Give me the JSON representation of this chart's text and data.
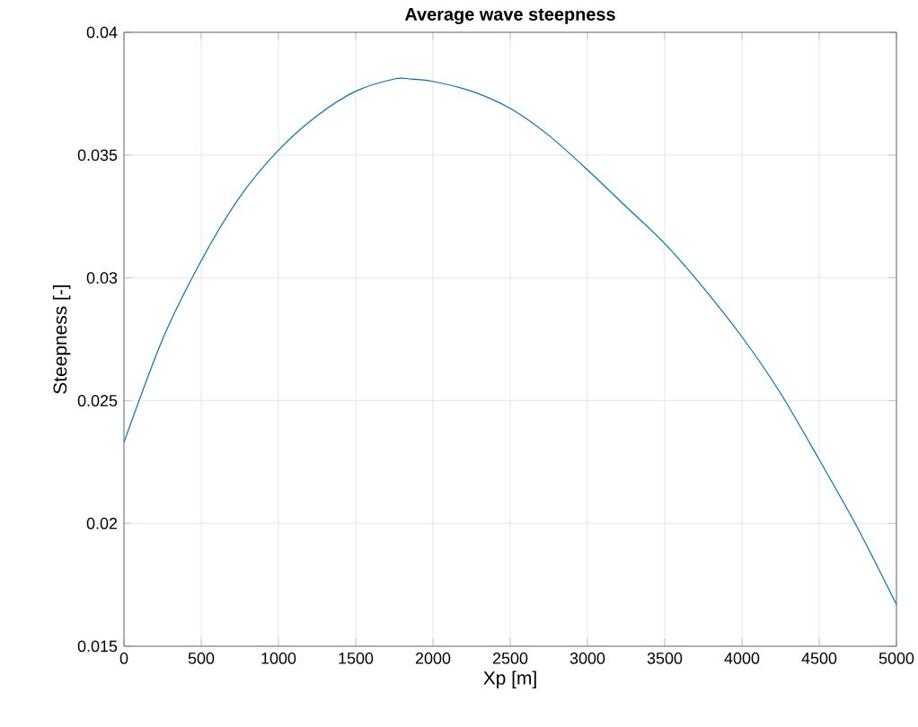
{
  "chart_data": {
    "type": "line",
    "title": "Average wave steepness",
    "xlabel": "Xp [m]",
    "ylabel": "Steepness [-]",
    "x": [
      0,
      250,
      500,
      750,
      1000,
      1250,
      1500,
      1750,
      1850,
      2000,
      2250,
      2500,
      2750,
      3000,
      3250,
      3500,
      3750,
      4000,
      4250,
      4500,
      4750,
      5000
    ],
    "series": [
      {
        "color": "#0072bd",
        "values": [
          0.0233,
          0.0275,
          0.0307,
          0.0333,
          0.0352,
          0.0366,
          0.0376,
          0.0381,
          0.0381,
          0.038,
          0.0376,
          0.0369,
          0.0358,
          0.0344,
          0.0329,
          0.0314,
          0.0296,
          0.0276,
          0.0253,
          0.0226,
          0.0198,
          0.0167
        ]
      }
    ],
    "xlim": [
      0,
      5000
    ],
    "ylim": [
      0.015,
      0.04
    ],
    "xticks": [
      0,
      500,
      1000,
      1500,
      2000,
      2500,
      3000,
      3500,
      4000,
      4500,
      5000
    ],
    "yticks": [
      0.015,
      0.02,
      0.025,
      0.03,
      0.035,
      0.04
    ],
    "grid": true,
    "marker": "none",
    "line_style": "solid"
  }
}
